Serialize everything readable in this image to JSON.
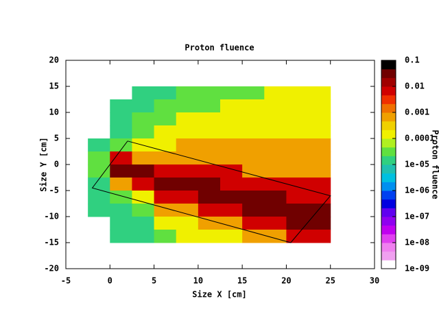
{
  "chart_data": {
    "type": "heatmap",
    "title": "Proton fluence",
    "x_label": "Size X [cm]",
    "y_label": "Size Y [cm]",
    "colorbar_label": "Proton fluence",
    "xlim": [
      -5,
      30
    ],
    "xticks": [
      -5,
      0,
      5,
      10,
      15,
      20,
      25,
      30
    ],
    "ylim": [
      -20,
      20
    ],
    "yticks": [
      -20,
      -15,
      -10,
      -5,
      0,
      5,
      10,
      15,
      20
    ],
    "zscale": "log",
    "clim": [
      1e-09,
      0.1
    ],
    "zticks": [
      0.1,
      0.01,
      0.001,
      0.0001,
      {
        "value": 1e-05,
        "label": "1e-05"
      },
      {
        "value": 1e-06,
        "label": "1e-06"
      },
      {
        "value": 1e-07,
        "label": "1e-07"
      },
      {
        "value": 1e-08,
        "label": "1e-08"
      },
      {
        "value": 1e-09,
        "label": "1e-09"
      }
    ],
    "colorscale": [
      "#ffffff",
      "#f0a0f0",
      "#f080f0",
      "#e040f0",
      "#c000f0",
      "#9000f0",
      "#6000f0",
      "#0000e0",
      "#0040f0",
      "#0090f0",
      "#00c0e0",
      "#20c0b0",
      "#30d080",
      "#60e040",
      "#b0f020",
      "#f0f000",
      "#f0d000",
      "#f0a000",
      "#f07000",
      "#f03000",
      "#d00000",
      "#a00000",
      "#700000",
      "#000000"
    ],
    "x": [
      -1.25,
      1.25,
      3.75,
      6.25,
      8.75,
      11.25,
      13.75,
      16.25,
      18.75,
      21.25,
      23.75
    ],
    "y": [
      13.75,
      11.25,
      8.75,
      6.25,
      3.75,
      1.25,
      -1.25,
      -3.75,
      -6.25,
      -8.75,
      -11.25,
      -13.75
    ],
    "z": [
      [
        null,
        null,
        1e-05,
        1e-05,
        3e-05,
        3e-05,
        3e-05,
        3e-05,
        0.0001,
        0.0001,
        0.0001
      ],
      [
        null,
        1e-05,
        1e-05,
        3e-05,
        3e-05,
        3e-05,
        0.0001,
        0.0001,
        0.0001,
        0.0001,
        0.0001
      ],
      [
        null,
        1e-05,
        3e-05,
        3e-05,
        0.0001,
        0.0001,
        0.0001,
        0.0001,
        0.0001,
        0.0001,
        0.0001
      ],
      [
        null,
        1e-05,
        3e-05,
        0.0001,
        0.0001,
        0.0001,
        0.0001,
        0.0001,
        0.0001,
        0.0001,
        0.0001
      ],
      [
        1e-05,
        3e-05,
        0.0001,
        0.0001,
        0.0005,
        0.0005,
        0.0005,
        0.0005,
        0.0005,
        0.0005,
        0.0005
      ],
      [
        3e-05,
        0.005,
        0.0005,
        0.0005,
        0.0005,
        0.0005,
        0.0005,
        0.0005,
        0.0005,
        0.0005,
        0.0005
      ],
      [
        3e-05,
        0.03,
        0.03,
        0.005,
        0.005,
        0.005,
        0.005,
        0.0005,
        0.0005,
        0.0005,
        0.0005
      ],
      [
        1e-05,
        0.0005,
        0.005,
        0.03,
        0.03,
        0.03,
        0.005,
        0.005,
        0.005,
        0.005,
        0.005
      ],
      [
        1e-05,
        3e-05,
        0.0001,
        0.005,
        0.005,
        0.03,
        0.03,
        0.03,
        0.03,
        0.005,
        0.005
      ],
      [
        1e-05,
        1e-05,
        3e-05,
        0.0005,
        0.0005,
        0.005,
        0.005,
        0.03,
        0.03,
        0.03,
        0.03
      ],
      [
        null,
        1e-05,
        1e-05,
        0.0001,
        0.0001,
        0.0005,
        0.0005,
        0.005,
        0.005,
        0.03,
        0.03
      ],
      [
        null,
        1e-05,
        1e-05,
        3e-05,
        0.0001,
        0.0001,
        0.0001,
        0.0005,
        0.0005,
        0.005,
        0.005
      ]
    ],
    "outline": {
      "x": [
        2,
        25,
        20.5,
        -2,
        2
      ],
      "y": [
        4.5,
        -6,
        -15,
        -4.5,
        4.5
      ]
    }
  }
}
